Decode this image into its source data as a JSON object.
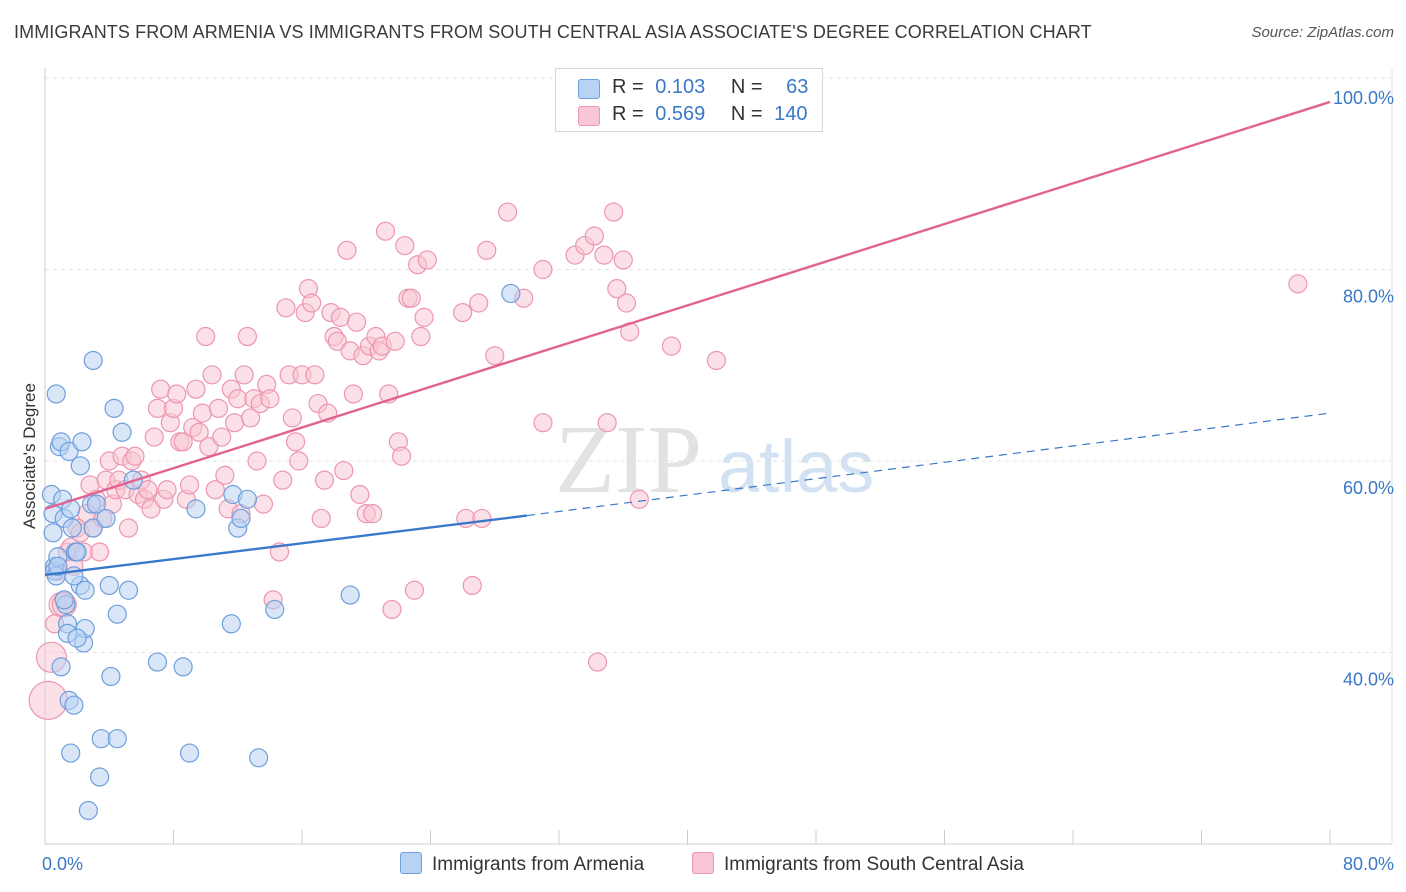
{
  "title": "IMMIGRANTS FROM ARMENIA VS IMMIGRANTS FROM SOUTH CENTRAL ASIA ASSOCIATE'S DEGREE CORRELATION CHART",
  "source": "Source: ZipAtlas.com",
  "watermark": "ZIPatlas",
  "colors": {
    "blue_fill": "#b8d2f3",
    "blue_stroke": "#6f9fdc",
    "blue_line": "#3a78c9",
    "pink_fill": "#f8c6d4",
    "pink_stroke": "#ec96b0",
    "pink_line": "#e0648f",
    "tick_label": "#3a78c9",
    "grid": "#e3e3e3"
  },
  "legend": {
    "rows": [
      {
        "r_label": "R =",
        "r_value": "0.103",
        "n_label": "N =",
        "n_value": "63"
      },
      {
        "r_label": "R =",
        "r_value": "0.569",
        "n_label": "N =",
        "n_value": "140"
      }
    ]
  },
  "chart_data": {
    "type": "scatter",
    "title": "IMMIGRANTS FROM ARMENIA VS IMMIGRANTS FROM SOUTH CENTRAL ASIA ASSOCIATE'S DEGREE CORRELATION CHART",
    "xlabel": "",
    "ylabel": "Associate's Degree",
    "xlim": [
      0,
      0.8
    ],
    "ylim": [
      0.2,
      1.02
    ],
    "x_tick_labels": [
      "0.0%",
      "80.0%"
    ],
    "y_ticks": [
      0.4,
      0.6,
      0.8,
      1.0
    ],
    "y_tick_labels": [
      "40.0%",
      "60.0%",
      "80.0%",
      "100.0%"
    ],
    "series": [
      {
        "name": "Immigrants from Armenia",
        "color": "blue",
        "R": 0.103,
        "N": 63,
        "trend": {
          "x0": 0.0,
          "y0": 0.481,
          "x1": 0.3,
          "y1": 0.543,
          "dash_to_x": 0.8,
          "dash_to_y": 0.65
        },
        "points": [
          [
            0.004,
            0.565
          ],
          [
            0.005,
            0.545
          ],
          [
            0.005,
            0.525
          ],
          [
            0.006,
            0.49
          ],
          [
            0.006,
            0.485
          ],
          [
            0.007,
            0.48
          ],
          [
            0.008,
            0.5
          ],
          [
            0.007,
            0.67
          ],
          [
            0.009,
            0.615
          ],
          [
            0.01,
            0.62
          ],
          [
            0.011,
            0.56
          ],
          [
            0.012,
            0.54
          ],
          [
            0.013,
            0.45
          ],
          [
            0.014,
            0.43
          ],
          [
            0.014,
            0.42
          ],
          [
            0.01,
            0.385
          ],
          [
            0.015,
            0.61
          ],
          [
            0.016,
            0.55
          ],
          [
            0.017,
            0.53
          ],
          [
            0.015,
            0.35
          ],
          [
            0.018,
            0.345
          ],
          [
            0.016,
            0.295
          ],
          [
            0.019,
            0.505
          ],
          [
            0.02,
            0.505
          ],
          [
            0.022,
            0.47
          ],
          [
            0.023,
            0.62
          ],
          [
            0.022,
            0.595
          ],
          [
            0.025,
            0.465
          ],
          [
            0.024,
            0.41
          ],
          [
            0.025,
            0.425
          ],
          [
            0.027,
            0.235
          ],
          [
            0.029,
            0.555
          ],
          [
            0.03,
            0.53
          ],
          [
            0.03,
            0.705
          ],
          [
            0.032,
            0.555
          ],
          [
            0.034,
            0.27
          ],
          [
            0.035,
            0.31
          ],
          [
            0.038,
            0.54
          ],
          [
            0.04,
            0.47
          ],
          [
            0.041,
            0.375
          ],
          [
            0.043,
            0.655
          ],
          [
            0.045,
            0.44
          ],
          [
            0.045,
            0.31
          ],
          [
            0.048,
            0.63
          ],
          [
            0.052,
            0.465
          ],
          [
            0.055,
            0.58
          ],
          [
            0.07,
            0.39
          ],
          [
            0.086,
            0.385
          ],
          [
            0.09,
            0.295
          ],
          [
            0.094,
            0.55
          ],
          [
            0.116,
            0.43
          ],
          [
            0.117,
            0.565
          ],
          [
            0.12,
            0.53
          ],
          [
            0.122,
            0.54
          ],
          [
            0.126,
            0.56
          ],
          [
            0.133,
            0.29
          ],
          [
            0.143,
            0.445
          ],
          [
            0.19,
            0.46
          ],
          [
            0.29,
            0.775
          ],
          [
            0.008,
            0.49
          ],
          [
            0.012,
            0.455
          ],
          [
            0.018,
            0.48
          ],
          [
            0.02,
            0.415
          ]
        ]
      },
      {
        "name": "Immigrants from South Central Asia",
        "color": "pink",
        "R": 0.569,
        "N": 140,
        "trend": {
          "x0": 0.0,
          "y0": 0.55,
          "x1": 0.8,
          "y1": 0.975
        },
        "points": [
          [
            0.002,
            0.35
          ],
          [
            0.004,
            0.395
          ],
          [
            0.008,
            0.485
          ],
          [
            0.01,
            0.45
          ],
          [
            0.012,
            0.45
          ],
          [
            0.014,
            0.505
          ],
          [
            0.016,
            0.51
          ],
          [
            0.018,
            0.49
          ],
          [
            0.02,
            0.53
          ],
          [
            0.022,
            0.525
          ],
          [
            0.024,
            0.505
          ],
          [
            0.026,
            0.545
          ],
          [
            0.028,
            0.575
          ],
          [
            0.03,
            0.53
          ],
          [
            0.032,
            0.56
          ],
          [
            0.034,
            0.505
          ],
          [
            0.036,
            0.54
          ],
          [
            0.038,
            0.58
          ],
          [
            0.04,
            0.6
          ],
          [
            0.042,
            0.555
          ],
          [
            0.044,
            0.57
          ],
          [
            0.046,
            0.58
          ],
          [
            0.048,
            0.605
          ],
          [
            0.05,
            0.57
          ],
          [
            0.052,
            0.53
          ],
          [
            0.054,
            0.6
          ],
          [
            0.056,
            0.605
          ],
          [
            0.058,
            0.565
          ],
          [
            0.06,
            0.58
          ],
          [
            0.062,
            0.56
          ],
          [
            0.064,
            0.57
          ],
          [
            0.066,
            0.55
          ],
          [
            0.068,
            0.625
          ],
          [
            0.07,
            0.655
          ],
          [
            0.072,
            0.675
          ],
          [
            0.074,
            0.56
          ],
          [
            0.076,
            0.57
          ],
          [
            0.078,
            0.64
          ],
          [
            0.08,
            0.655
          ],
          [
            0.082,
            0.67
          ],
          [
            0.084,
            0.62
          ],
          [
            0.086,
            0.62
          ],
          [
            0.088,
            0.56
          ],
          [
            0.09,
            0.575
          ],
          [
            0.092,
            0.635
          ],
          [
            0.094,
            0.675
          ],
          [
            0.096,
            0.63
          ],
          [
            0.098,
            0.65
          ],
          [
            0.1,
            0.73
          ],
          [
            0.102,
            0.615
          ],
          [
            0.104,
            0.69
          ],
          [
            0.106,
            0.57
          ],
          [
            0.108,
            0.655
          ],
          [
            0.11,
            0.625
          ],
          [
            0.112,
            0.585
          ],
          [
            0.114,
            0.55
          ],
          [
            0.116,
            0.675
          ],
          [
            0.118,
            0.64
          ],
          [
            0.12,
            0.665
          ],
          [
            0.122,
            0.545
          ],
          [
            0.124,
            0.69
          ],
          [
            0.126,
            0.73
          ],
          [
            0.128,
            0.645
          ],
          [
            0.13,
            0.665
          ],
          [
            0.132,
            0.6
          ],
          [
            0.134,
            0.66
          ],
          [
            0.136,
            0.555
          ],
          [
            0.138,
            0.68
          ],
          [
            0.14,
            0.665
          ],
          [
            0.142,
            0.455
          ],
          [
            0.146,
            0.505
          ],
          [
            0.148,
            0.58
          ],
          [
            0.15,
            0.76
          ],
          [
            0.152,
            0.69
          ],
          [
            0.154,
            0.645
          ],
          [
            0.156,
            0.62
          ],
          [
            0.158,
            0.6
          ],
          [
            0.16,
            0.69
          ],
          [
            0.162,
            0.755
          ],
          [
            0.164,
            0.78
          ],
          [
            0.166,
            0.765
          ],
          [
            0.168,
            0.69
          ],
          [
            0.17,
            0.66
          ],
          [
            0.172,
            0.54
          ],
          [
            0.174,
            0.58
          ],
          [
            0.176,
            0.65
          ],
          [
            0.178,
            0.755
          ],
          [
            0.18,
            0.73
          ],
          [
            0.182,
            0.725
          ],
          [
            0.184,
            0.75
          ],
          [
            0.186,
            0.59
          ],
          [
            0.188,
            0.82
          ],
          [
            0.19,
            0.715
          ],
          [
            0.192,
            0.67
          ],
          [
            0.194,
            0.745
          ],
          [
            0.196,
            0.565
          ],
          [
            0.198,
            0.71
          ],
          [
            0.2,
            0.545
          ],
          [
            0.202,
            0.72
          ],
          [
            0.204,
            0.545
          ],
          [
            0.206,
            0.73
          ],
          [
            0.208,
            0.715
          ],
          [
            0.21,
            0.72
          ],
          [
            0.212,
            0.84
          ],
          [
            0.214,
            0.67
          ],
          [
            0.216,
            0.445
          ],
          [
            0.218,
            0.725
          ],
          [
            0.22,
            0.62
          ],
          [
            0.222,
            0.605
          ],
          [
            0.224,
            0.825
          ],
          [
            0.226,
            0.77
          ],
          [
            0.228,
            0.77
          ],
          [
            0.23,
            0.465
          ],
          [
            0.232,
            0.805
          ],
          [
            0.234,
            0.73
          ],
          [
            0.236,
            0.75
          ],
          [
            0.238,
            0.81
          ],
          [
            0.26,
            0.755
          ],
          [
            0.262,
            0.54
          ],
          [
            0.266,
            0.47
          ],
          [
            0.27,
            0.765
          ],
          [
            0.272,
            0.54
          ],
          [
            0.275,
            0.82
          ],
          [
            0.28,
            0.71
          ],
          [
            0.288,
            0.86
          ],
          [
            0.298,
            0.77
          ],
          [
            0.31,
            0.8
          ],
          [
            0.31,
            0.64
          ],
          [
            0.33,
            0.815
          ],
          [
            0.336,
            0.825
          ],
          [
            0.342,
            0.835
          ],
          [
            0.344,
            0.39
          ],
          [
            0.348,
            0.815
          ],
          [
            0.35,
            0.64
          ],
          [
            0.354,
            0.86
          ],
          [
            0.356,
            0.78
          ],
          [
            0.36,
            0.81
          ],
          [
            0.362,
            0.765
          ],
          [
            0.364,
            0.735
          ],
          [
            0.37,
            0.56
          ],
          [
            0.39,
            0.72
          ],
          [
            0.418,
            0.705
          ],
          [
            0.78,
            0.785
          ],
          [
            0.006,
            0.43
          ]
        ]
      }
    ]
  },
  "bottom_legend": [
    {
      "label": "Immigrants from Armenia"
    },
    {
      "label": "Immigrants from South Central Asia"
    }
  ]
}
